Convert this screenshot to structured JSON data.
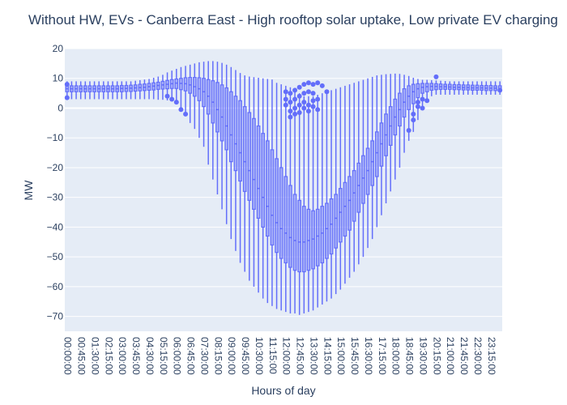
{
  "chart_data": {
    "type": "box",
    "title": "Without HW, EVs - Canberra East - High rooftop solar uptake, Low private EV charging",
    "xlabel": "Hours of day",
    "ylabel": "MW",
    "ylim": [
      -75,
      20
    ],
    "yticks": [
      20,
      10,
      0,
      -10,
      -20,
      -30,
      -40,
      -50,
      -60,
      -70
    ],
    "grid": true,
    "legend": "none",
    "colors": {
      "box": "#636efa",
      "plot_bg": "#e5ecf6",
      "grid": "#ffffff",
      "text": "#2a3f5f"
    },
    "x_tick_labels": [
      "00:00:00",
      "00:45:00",
      "01:30:00",
      "02:15:00",
      "03:00:00",
      "03:45:00",
      "04:30:00",
      "05:15:00",
      "06:00:00",
      "06:45:00",
      "07:30:00",
      "08:15:00",
      "09:00:00",
      "09:45:00",
      "10:30:00",
      "11:15:00",
      "12:00:00",
      "12:45:00",
      "13:30:00",
      "14:15:00",
      "15:00:00",
      "15:45:00",
      "16:30:00",
      "17:15:00",
      "18:00:00",
      "18:45:00",
      "19:30:00",
      "20:15:00",
      "21:00:00",
      "21:45:00",
      "22:30:00",
      "23:15:00"
    ],
    "categories": [
      "00:00:00",
      "00:15:00",
      "00:30:00",
      "00:45:00",
      "01:00:00",
      "01:15:00",
      "01:30:00",
      "01:45:00",
      "02:00:00",
      "02:15:00",
      "02:30:00",
      "02:45:00",
      "03:00:00",
      "03:15:00",
      "03:30:00",
      "03:45:00",
      "04:00:00",
      "04:15:00",
      "04:30:00",
      "04:45:00",
      "05:00:00",
      "05:15:00",
      "05:30:00",
      "05:45:00",
      "06:00:00",
      "06:15:00",
      "06:30:00",
      "06:45:00",
      "07:00:00",
      "07:15:00",
      "07:30:00",
      "07:45:00",
      "08:00:00",
      "08:15:00",
      "08:30:00",
      "08:45:00",
      "09:00:00",
      "09:15:00",
      "09:30:00",
      "09:45:00",
      "10:00:00",
      "10:15:00",
      "10:30:00",
      "10:45:00",
      "11:00:00",
      "11:15:00",
      "11:30:00",
      "11:45:00",
      "12:00:00",
      "12:15:00",
      "12:30:00",
      "12:45:00",
      "13:00:00",
      "13:15:00",
      "13:30:00",
      "13:45:00",
      "14:00:00",
      "14:15:00",
      "14:30:00",
      "14:45:00",
      "15:00:00",
      "15:15:00",
      "15:30:00",
      "15:45:00",
      "16:00:00",
      "16:15:00",
      "16:30:00",
      "16:45:00",
      "17:00:00",
      "17:15:00",
      "17:30:00",
      "17:45:00",
      "18:00:00",
      "18:15:00",
      "18:30:00",
      "18:45:00",
      "19:00:00",
      "19:15:00",
      "19:30:00",
      "19:45:00",
      "20:00:00",
      "20:15:00",
      "20:30:00",
      "20:45:00",
      "21:00:00",
      "21:15:00",
      "21:30:00",
      "21:45:00",
      "22:00:00",
      "22:15:00",
      "22:30:00",
      "22:45:00",
      "23:00:00",
      "23:15:00",
      "23:30:00",
      "23:45:00"
    ],
    "boxes": [
      {
        "min": 3,
        "q1": 5.5,
        "median": 6.5,
        "q3": 7.5,
        "max": 9
      },
      {
        "min": 3,
        "q1": 5.5,
        "median": 6.5,
        "q3": 7.5,
        "max": 9
      },
      {
        "min": 3,
        "q1": 5.5,
        "median": 6.5,
        "q3": 7.5,
        "max": 9
      },
      {
        "min": 3,
        "q1": 5.5,
        "median": 6.5,
        "q3": 7.5,
        "max": 9
      },
      {
        "min": 3,
        "q1": 5.5,
        "median": 6.5,
        "q3": 7.5,
        "max": 9
      },
      {
        "min": 3,
        "q1": 5.5,
        "median": 6.5,
        "q3": 7.5,
        "max": 9
      },
      {
        "min": 3,
        "q1": 5.5,
        "median": 6.5,
        "q3": 7.5,
        "max": 9
      },
      {
        "min": 3,
        "q1": 5.5,
        "median": 6.5,
        "q3": 7.5,
        "max": 9
      },
      {
        "min": 3,
        "q1": 5.5,
        "median": 6.5,
        "q3": 7.5,
        "max": 9
      },
      {
        "min": 3,
        "q1": 5.5,
        "median": 6.5,
        "q3": 7.5,
        "max": 9
      },
      {
        "min": 3,
        "q1": 5.5,
        "median": 6.5,
        "q3": 7.5,
        "max": 9
      },
      {
        "min": 3,
        "q1": 5.5,
        "median": 6.5,
        "q3": 7.5,
        "max": 9
      },
      {
        "min": 3,
        "q1": 5.5,
        "median": 6.6,
        "q3": 7.6,
        "max": 9
      },
      {
        "min": 3,
        "q1": 5.6,
        "median": 6.6,
        "q3": 7.6,
        "max": 9
      },
      {
        "min": 3,
        "q1": 5.6,
        "median": 6.7,
        "q3": 7.7,
        "max": 9
      },
      {
        "min": 3,
        "q1": 5.7,
        "median": 6.8,
        "q3": 7.8,
        "max": 9.2
      },
      {
        "min": 3,
        "q1": 5.8,
        "median": 6.9,
        "q3": 8,
        "max": 9.4
      },
      {
        "min": 3,
        "q1": 5.9,
        "median": 7,
        "q3": 8.1,
        "max": 9.6
      },
      {
        "min": 3,
        "q1": 6,
        "median": 7.2,
        "q3": 8.3,
        "max": 9.8
      },
      {
        "min": 3,
        "q1": 6.1,
        "median": 7.4,
        "q3": 8.5,
        "max": 10.2
      },
      {
        "min": 2.8,
        "q1": 6.3,
        "median": 7.6,
        "q3": 8.7,
        "max": 10.6
      },
      {
        "min": 2.8,
        "q1": 6.4,
        "median": 7.8,
        "q3": 9,
        "max": 11.2
      },
      {
        "min": 2.6,
        "q1": 6.5,
        "median": 8,
        "q3": 9.3,
        "max": 12
      },
      {
        "min": 2.4,
        "q1": 6.6,
        "median": 8.2,
        "q3": 9.6,
        "max": 12.6
      },
      {
        "min": 2,
        "q1": 6.6,
        "median": 8.4,
        "q3": 9.8,
        "max": 13.2
      },
      {
        "min": -1,
        "q1": 6.2,
        "median": 8.3,
        "q3": 10,
        "max": 13.8
      },
      {
        "min": -2,
        "q1": 5.8,
        "median": 8.2,
        "q3": 10.2,
        "max": 14.2
      },
      {
        "min": -5,
        "q1": 5,
        "median": 7.8,
        "q3": 10.3,
        "max": 14.6
      },
      {
        "min": -7,
        "q1": 4,
        "median": 7.2,
        "q3": 10.3,
        "max": 15
      },
      {
        "min": -10,
        "q1": 2.5,
        "median": 6.5,
        "q3": 10.2,
        "max": 15.4
      },
      {
        "min": -13,
        "q1": 0.5,
        "median": 5.5,
        "q3": 10,
        "max": 15.6
      },
      {
        "min": -19,
        "q1": -2,
        "median": 4,
        "q3": 9.6,
        "max": 15.8
      },
      {
        "min": -24,
        "q1": -5,
        "median": 2,
        "q3": 9.2,
        "max": 15.8
      },
      {
        "min": -29,
        "q1": -8,
        "median": -0.5,
        "q3": 8.6,
        "max": 15.6
      },
      {
        "min": -34,
        "q1": -11,
        "median": -3,
        "q3": 7.8,
        "max": 15.2
      },
      {
        "min": -39,
        "q1": -14,
        "median": -6,
        "q3": 6.8,
        "max": 14.6
      },
      {
        "min": -44,
        "q1": -18,
        "median": -9,
        "q3": 5.5,
        "max": 13.8
      },
      {
        "min": -48,
        "q1": -21,
        "median": -12,
        "q3": 4,
        "max": 12.8
      },
      {
        "min": -52,
        "q1": -24.5,
        "median": -15,
        "q3": 2.5,
        "max": 11.8
      },
      {
        "min": -55,
        "q1": -28,
        "median": -18,
        "q3": 0.5,
        "max": 11
      },
      {
        "min": -58,
        "q1": -31,
        "median": -21,
        "q3": -1.5,
        "max": 10.6
      },
      {
        "min": -60,
        "q1": -34,
        "median": -24,
        "q3": -3.5,
        "max": 10.4
      },
      {
        "min": -62,
        "q1": -37,
        "median": -27,
        "q3": -6,
        "max": 10.2
      },
      {
        "min": -64,
        "q1": -40,
        "median": -30,
        "q3": -8.5,
        "max": 10
      },
      {
        "min": -65.5,
        "q1": -43,
        "median": -33,
        "q3": -11,
        "max": 9.8
      },
      {
        "min": -66.5,
        "q1": -46,
        "median": -36,
        "q3": -14,
        "max": 9.6
      },
      {
        "min": -67.5,
        "q1": -48.5,
        "median": -38.5,
        "q3": -17,
        "max": 8.5
      },
      {
        "min": -68,
        "q1": -50.5,
        "median": -40.5,
        "q3": -20,
        "max": 8
      },
      {
        "min": -68.5,
        "q1": -52,
        "median": -42,
        "q3": -23,
        "max": 7.5
      },
      {
        "min": -69,
        "q1": -53.5,
        "median": -43.5,
        "q3": -26,
        "max": 7
      },
      {
        "min": -69,
        "q1": -54.5,
        "median": -44.5,
        "q3": -29,
        "max": 6
      },
      {
        "min": -69.5,
        "q1": -55,
        "median": -45,
        "q3": -31,
        "max": 5
      },
      {
        "min": -69,
        "q1": -55,
        "median": -45,
        "q3": -33,
        "max": 4
      },
      {
        "min": -68.5,
        "q1": -54.5,
        "median": -44.5,
        "q3": -34,
        "max": 4
      },
      {
        "min": -68,
        "q1": -54,
        "median": -44,
        "q3": -34.5,
        "max": 4
      },
      {
        "min": -67,
        "q1": -53,
        "median": -43,
        "q3": -34,
        "max": 4.5
      },
      {
        "min": -66,
        "q1": -52,
        "median": -42,
        "q3": -33,
        "max": 5
      },
      {
        "min": -65,
        "q1": -50.5,
        "median": -40.5,
        "q3": -32,
        "max": 5.5
      },
      {
        "min": -64,
        "q1": -49,
        "median": -39,
        "q3": -30.5,
        "max": 6
      },
      {
        "min": -62.5,
        "q1": -47,
        "median": -37,
        "q3": -29,
        "max": 6.5
      },
      {
        "min": -61,
        "q1": -45,
        "median": -35,
        "q3": -27,
        "max": 7
      },
      {
        "min": -59,
        "q1": -43,
        "median": -33,
        "q3": -25,
        "max": 7.5
      },
      {
        "min": -57,
        "q1": -41,
        "median": -31,
        "q3": -23,
        "max": 8
      },
      {
        "min": -55,
        "q1": -38,
        "median": -28.5,
        "q3": -21,
        "max": 8.5
      },
      {
        "min": -52.5,
        "q1": -35,
        "median": -26,
        "q3": -18.5,
        "max": 9
      },
      {
        "min": -50,
        "q1": -32,
        "median": -23.5,
        "q3": -16,
        "max": 9.5
      },
      {
        "min": -47,
        "q1": -29,
        "median": -21,
        "q3": -13.5,
        "max": 10
      },
      {
        "min": -44,
        "q1": -26,
        "median": -18,
        "q3": -11,
        "max": 10.5
      },
      {
        "min": -40,
        "q1": -23,
        "median": -15,
        "q3": -8,
        "max": 11
      },
      {
        "min": -36,
        "q1": -19.5,
        "median": -12,
        "q3": -5,
        "max": 11.2
      },
      {
        "min": -32,
        "q1": -16,
        "median": -9,
        "q3": -2,
        "max": 11.4
      },
      {
        "min": -28,
        "q1": -12.5,
        "median": -6,
        "q3": 0.5,
        "max": 11.5
      },
      {
        "min": -24,
        "q1": -9,
        "median": -3,
        "q3": 3,
        "max": 11.6
      },
      {
        "min": -20,
        "q1": -6,
        "median": -0.5,
        "q3": 5,
        "max": 11.5
      },
      {
        "min": -15,
        "q1": -3,
        "median": 2,
        "q3": 6.5,
        "max": 11.2
      },
      {
        "min": -11,
        "q1": -0.5,
        "median": 4,
        "q3": 7.5,
        "max": 10.8
      },
      {
        "min": -8,
        "q1": 1.5,
        "median": 5.5,
        "q3": 8,
        "max": 10.2
      },
      {
        "min": -4,
        "q1": 3.5,
        "median": 6.5,
        "q3": 8.2,
        "max": 9.8
      },
      {
        "min": 0,
        "q1": 5,
        "median": 7,
        "q3": 8.3,
        "max": 9.5
      },
      {
        "min": 2,
        "q1": 5.5,
        "median": 7.2,
        "q3": 8.3,
        "max": 9.5
      },
      {
        "min": 4,
        "q1": 6,
        "median": 7.3,
        "q3": 8.3,
        "max": 9.4
      },
      {
        "min": 4.5,
        "q1": 6.2,
        "median": 7.3,
        "q3": 8.2,
        "max": 9.3
      },
      {
        "min": 4.5,
        "q1": 6.3,
        "median": 7.2,
        "q3": 8.1,
        "max": 9.2
      },
      {
        "min": 4.5,
        "q1": 6.3,
        "median": 7.2,
        "q3": 8,
        "max": 9.1
      },
      {
        "min": 4.5,
        "q1": 6.3,
        "median": 7.1,
        "q3": 8,
        "max": 9
      },
      {
        "min": 4.5,
        "q1": 6.2,
        "median": 7,
        "q3": 7.9,
        "max": 9
      },
      {
        "min": 4.5,
        "q1": 6.2,
        "median": 7,
        "q3": 7.9,
        "max": 9
      },
      {
        "min": 4.5,
        "q1": 6.1,
        "median": 6.9,
        "q3": 7.8,
        "max": 9
      },
      {
        "min": 4.5,
        "q1": 6.1,
        "median": 6.9,
        "q3": 7.8,
        "max": 9
      },
      {
        "min": 4.5,
        "q1": 6,
        "median": 6.8,
        "q3": 7.7,
        "max": 9
      },
      {
        "min": 4.5,
        "q1": 6,
        "median": 6.8,
        "q3": 7.7,
        "max": 9
      },
      {
        "min": 4.5,
        "q1": 6,
        "median": 6.8,
        "q3": 7.6,
        "max": 9
      },
      {
        "min": 4.5,
        "q1": 5.9,
        "median": 6.7,
        "q3": 7.6,
        "max": 9
      },
      {
        "min": 4.5,
        "q1": 5.9,
        "median": 6.7,
        "q3": 7.6,
        "max": 9
      },
      {
        "min": 4.5,
        "q1": 5.9,
        "median": 6.7,
        "q3": 7.5,
        "max": 9
      },
      {
        "min": 4.5,
        "q1": 5.9,
        "median": 6.6,
        "q3": 7.5,
        "max": 9
      }
    ],
    "outliers": [
      {
        "x": "00:00:00",
        "y": 3.5
      },
      {
        "x": "00:00:00",
        "y": 8
      },
      {
        "x": "05:30:00",
        "y": 4
      },
      {
        "x": "05:45:00",
        "y": 3
      },
      {
        "x": "06:00:00",
        "y": 2
      },
      {
        "x": "06:15:00",
        "y": -0.5
      },
      {
        "x": "06:30:00",
        "y": -2
      },
      {
        "x": "12:00:00",
        "y": 5.5
      },
      {
        "x": "12:00:00",
        "y": 3
      },
      {
        "x": "12:00:00",
        "y": 1
      },
      {
        "x": "12:15:00",
        "y": 5
      },
      {
        "x": "12:15:00",
        "y": 2
      },
      {
        "x": "12:15:00",
        "y": -1
      },
      {
        "x": "12:15:00",
        "y": -3
      },
      {
        "x": "12:30:00",
        "y": 6
      },
      {
        "x": "12:30:00",
        "y": 3
      },
      {
        "x": "12:30:00",
        "y": 0
      },
      {
        "x": "12:30:00",
        "y": -2
      },
      {
        "x": "12:45:00",
        "y": 7
      },
      {
        "x": "12:45:00",
        "y": 4
      },
      {
        "x": "12:45:00",
        "y": 1
      },
      {
        "x": "12:45:00",
        "y": -1.5
      },
      {
        "x": "13:00:00",
        "y": 8
      },
      {
        "x": "13:00:00",
        "y": 5
      },
      {
        "x": "13:00:00",
        "y": 2
      },
      {
        "x": "13:00:00",
        "y": 0
      },
      {
        "x": "13:15:00",
        "y": 8.5
      },
      {
        "x": "13:15:00",
        "y": 5.5
      },
      {
        "x": "13:15:00",
        "y": 1
      },
      {
        "x": "13:15:00",
        "y": -1
      },
      {
        "x": "13:30:00",
        "y": 8
      },
      {
        "x": "13:30:00",
        "y": 5
      },
      {
        "x": "13:30:00",
        "y": 2.5
      },
      {
        "x": "13:30:00",
        "y": 0.5
      },
      {
        "x": "13:45:00",
        "y": 8.5
      },
      {
        "x": "13:45:00",
        "y": 3
      },
      {
        "x": "13:45:00",
        "y": -0.5
      },
      {
        "x": "14:00:00",
        "y": 7.5
      },
      {
        "x": "14:15:00",
        "y": 5.5
      },
      {
        "x": "18:45:00",
        "y": -7.5
      },
      {
        "x": "19:00:00",
        "y": -4
      },
      {
        "x": "19:00:00",
        "y": -2
      },
      {
        "x": "19:15:00",
        "y": 0.5
      },
      {
        "x": "19:15:00",
        "y": 2
      },
      {
        "x": "19:30:00",
        "y": 0
      },
      {
        "x": "19:30:00",
        "y": 3
      },
      {
        "x": "19:45:00",
        "y": 2.5
      },
      {
        "x": "20:15:00",
        "y": 10.5
      },
      {
        "x": "23:45:00",
        "y": 6
      }
    ]
  }
}
